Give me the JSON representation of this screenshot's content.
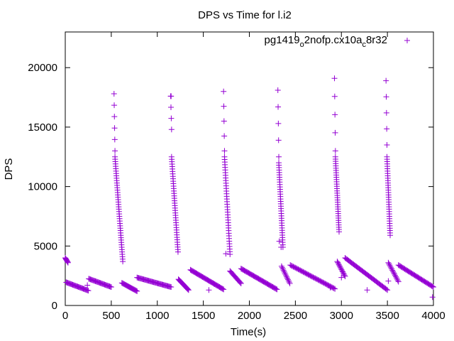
{
  "chart_data": {
    "type": "scatter",
    "title": "DPS vs Time for l.i2",
    "xlabel": "Time(s)",
    "ylabel": "DPS",
    "xlim": [
      0,
      4000
    ],
    "ylim": [
      0,
      23000
    ],
    "x_ticks": [
      0,
      500,
      1000,
      1500,
      2000,
      2500,
      3000,
      3500,
      4000
    ],
    "y_ticks": [
      0,
      5000,
      10000,
      15000,
      20000
    ],
    "grid": false,
    "legend_position": "top-right",
    "legend": {
      "text_before": "pg1419",
      "sub1": "o",
      "text_mid": "2nofp.cx10a",
      "sub2": "c",
      "text_after": "8r32"
    },
    "series": [
      {
        "name": "pg1419_o2nofp.cx10a_c8r32",
        "color": "#9400d3",
        "marker": "plus",
        "segments": [
          {
            "x_start": 0,
            "x_end": 30,
            "y_start": 4000,
            "y_end": 3600,
            "count": 8
          },
          {
            "x_start": 10,
            "x_end": 250,
            "y_start": 1950,
            "y_end": 1250,
            "count": 28
          },
          {
            "x_start": 255,
            "x_end": 500,
            "y_start": 2250,
            "y_end": 1550,
            "count": 28
          },
          {
            "x_start": 530,
            "x_end": 540,
            "y_start": 17800,
            "y_end": 13000,
            "count": 6
          },
          {
            "x_start": 540,
            "x_end": 625,
            "y_start": 12500,
            "y_end": 3700,
            "count": 45
          },
          {
            "x_start": 615,
            "x_end": 780,
            "y_start": 1900,
            "y_end": 1200,
            "count": 22
          },
          {
            "x_start": 780,
            "x_end": 1150,
            "y_start": 2350,
            "y_end": 1550,
            "count": 42
          },
          {
            "x_start": 1145,
            "x_end": 1155,
            "y_start": 17600,
            "y_end": 14800,
            "count": 4
          },
          {
            "x_start": 1155,
            "x_end": 1225,
            "y_start": 12500,
            "y_end": 4500,
            "count": 40
          },
          {
            "x_start": 1230,
            "x_end": 1340,
            "y_start": 2200,
            "y_end": 1300,
            "count": 18
          },
          {
            "x_start": 1360,
            "x_end": 1720,
            "y_start": 3000,
            "y_end": 1350,
            "count": 42
          },
          {
            "x_start": 1720,
            "x_end": 1730,
            "y_start": 18000,
            "y_end": 13000,
            "count": 5
          },
          {
            "x_start": 1730,
            "x_end": 1790,
            "y_start": 12500,
            "y_end": 4300,
            "count": 38
          },
          {
            "x_start": 1790,
            "x_end": 1910,
            "y_start": 2900,
            "y_end": 1850,
            "count": 16
          },
          {
            "x_start": 1910,
            "x_end": 2300,
            "y_start": 3100,
            "y_end": 1350,
            "count": 44
          },
          {
            "x_start": 2310,
            "x_end": 2320,
            "y_start": 18100,
            "y_end": 12500,
            "count": 5
          },
          {
            "x_start": 2320,
            "x_end": 2365,
            "y_start": 12000,
            "y_end": 4900,
            "count": 36
          },
          {
            "x_start": 2350,
            "x_end": 2440,
            "y_start": 3300,
            "y_end": 1850,
            "count": 14
          },
          {
            "x_start": 2445,
            "x_end": 2930,
            "y_start": 3400,
            "y_end": 1400,
            "count": 46
          },
          {
            "x_start": 2925,
            "x_end": 2935,
            "y_start": 19100,
            "y_end": 13000,
            "count": 5
          },
          {
            "x_start": 2935,
            "x_end": 2975,
            "y_start": 12500,
            "y_end": 6200,
            "count": 34
          },
          {
            "x_start": 2955,
            "x_end": 3040,
            "y_start": 3700,
            "y_end": 2450,
            "count": 14
          },
          {
            "x_start": 3040,
            "x_end": 3500,
            "y_start": 4000,
            "y_end": 1300,
            "count": 46
          },
          {
            "x_start": 3485,
            "x_end": 3495,
            "y_start": 18900,
            "y_end": 13500,
            "count": 5
          },
          {
            "x_start": 3495,
            "x_end": 3530,
            "y_start": 12500,
            "y_end": 5900,
            "count": 34
          },
          {
            "x_start": 3510,
            "x_end": 3620,
            "y_start": 3600,
            "y_end": 2000,
            "count": 16
          },
          {
            "x_start": 3620,
            "x_end": 4000,
            "y_start": 3400,
            "y_end": 1550,
            "count": 40
          }
        ],
        "outliers": [
          {
            "x": 240,
            "y": 1700
          },
          {
            "x": 1150,
            "y": 17600
          },
          {
            "x": 1560,
            "y": 1300
          },
          {
            "x": 1745,
            "y": 4350
          },
          {
            "x": 2325,
            "y": 5400
          },
          {
            "x": 2345,
            "y": 4900
          },
          {
            "x": 2880,
            "y": 1500
          },
          {
            "x": 3000,
            "y": 2350
          },
          {
            "x": 3510,
            "y": 2050
          },
          {
            "x": 3990,
            "y": 700
          },
          {
            "x": 3280,
            "y": 1300
          }
        ]
      }
    ]
  }
}
